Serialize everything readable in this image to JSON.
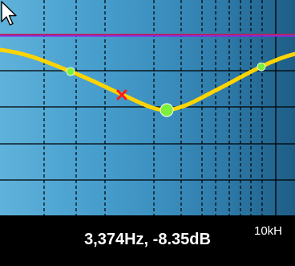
{
  "readout": {
    "frequency_db": "3,374Hz, -8.35dB"
  },
  "axis": {
    "freq_label": "10kH"
  },
  "colors": {
    "curve": "#ffd400",
    "reference_line": "#8a2be2",
    "handle_fill": "#7cf03a",
    "marker": "#ff1a1a",
    "grid": "#000000"
  },
  "icons": {
    "cursor": "mouse-pointer-icon",
    "marker": "x-marker-icon"
  }
}
